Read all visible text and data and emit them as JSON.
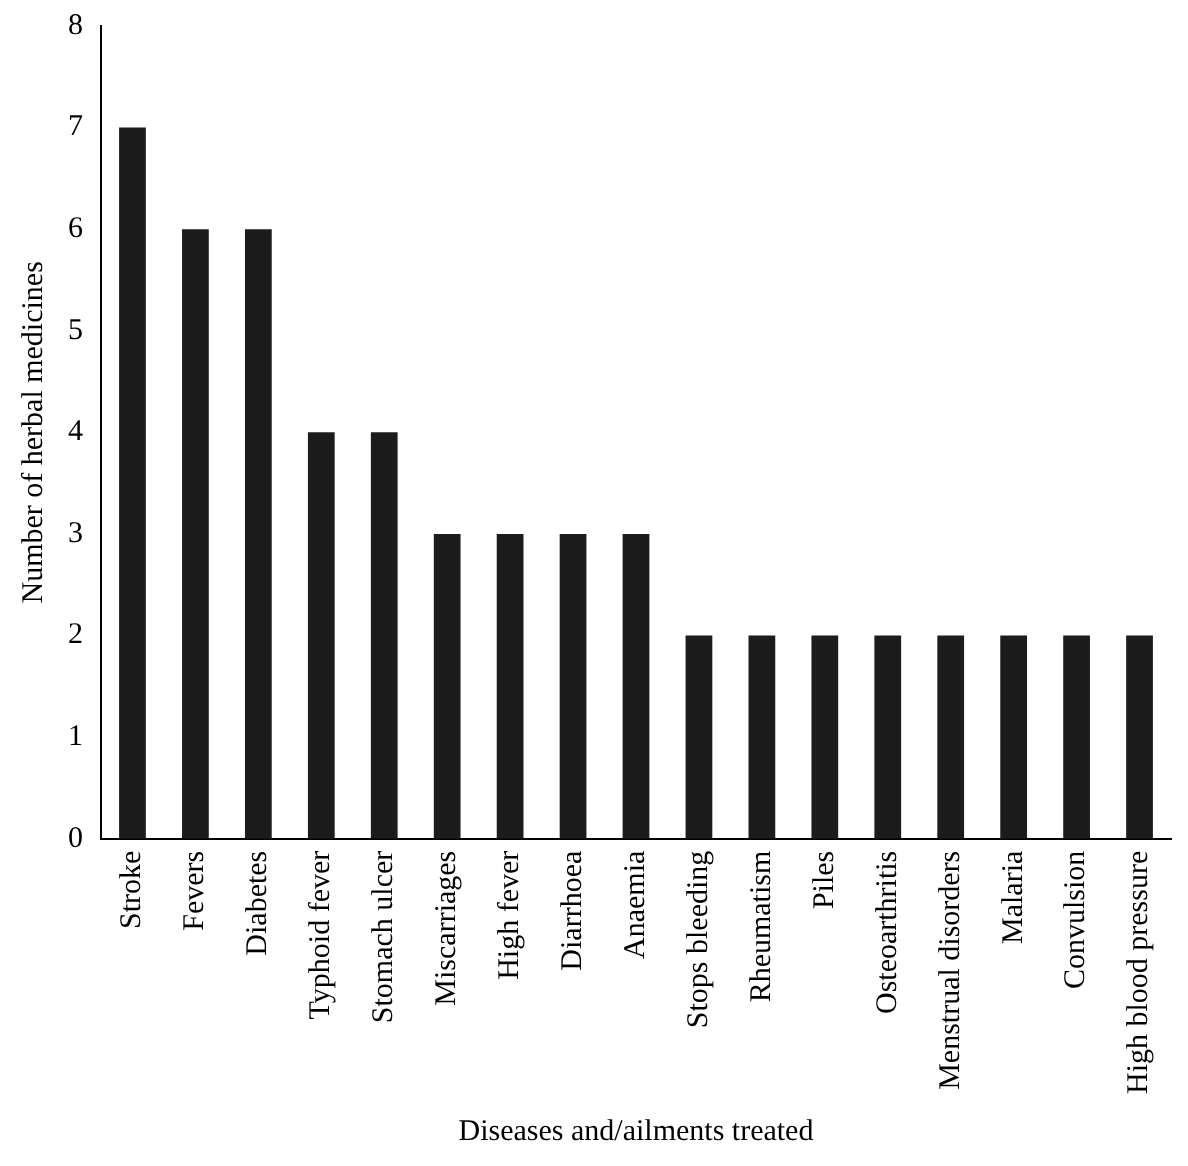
{
  "chart_data": {
    "type": "bar",
    "xlabel": "Diseases and/ailments treated",
    "ylabel": "Number of herbal medicines",
    "categories": [
      "Stroke",
      "Fevers",
      "Diabetes",
      "Typhoid fever",
      "Stomach ulcer",
      "Miscarriages",
      "High fever",
      "Diarrhoea",
      "Anaemia",
      "Stops bleeding",
      "Rheumatism",
      "Piles",
      "Osteoarthritis",
      "Menstrual disorders",
      "Malaria",
      "Convulsion",
      "High blood pressure"
    ],
    "values": [
      7,
      6,
      6,
      4,
      4,
      3,
      3,
      3,
      3,
      2,
      2,
      2,
      2,
      2,
      2,
      2,
      2
    ],
    "color": "#1c1c1c",
    "ylim": [
      0,
      8
    ],
    "yticks": [
      0,
      1,
      2,
      3,
      4,
      5,
      6,
      7,
      8
    ],
    "grid": false,
    "legend": false
  }
}
